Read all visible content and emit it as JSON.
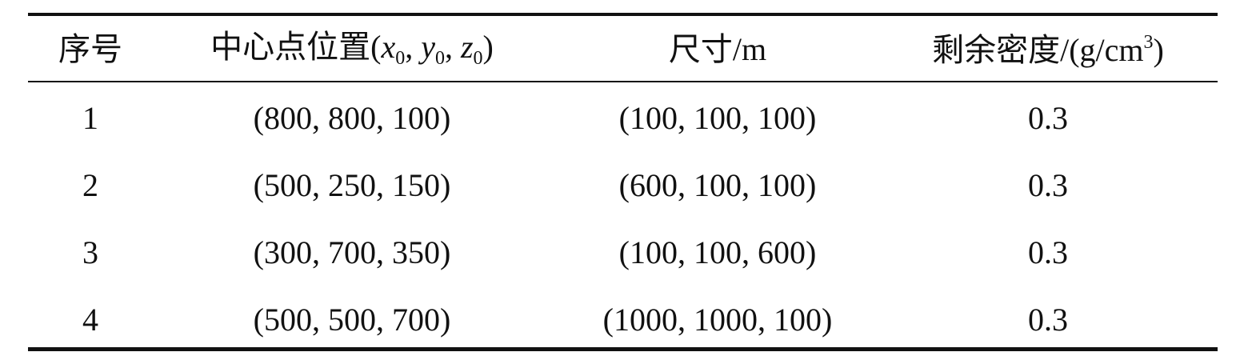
{
  "table": {
    "columns": [
      [
        {
          "text": "序号"
        }
      ],
      [
        {
          "text": "中心点位置("
        },
        {
          "text": "x",
          "italic": true
        },
        {
          "text": "0",
          "sub": true
        },
        {
          "text": ", "
        },
        {
          "text": "y",
          "italic": true
        },
        {
          "text": "0",
          "sub": true
        },
        {
          "text": ", "
        },
        {
          "text": "z",
          "italic": true
        },
        {
          "text": "0",
          "sub": true
        },
        {
          "text": ")"
        }
      ],
      [
        {
          "text": "尺寸/m"
        }
      ],
      [
        {
          "text": "剩余密度/(g/cm"
        },
        {
          "text": "3",
          "sup": true
        },
        {
          "text": ")"
        }
      ]
    ],
    "rows": [
      [
        "1",
        "(800, 800, 100)",
        "(100, 100, 100)",
        "0.3"
      ],
      [
        "2",
        "(500, 250, 150)",
        "(600, 100, 100)",
        "0.3"
      ],
      [
        "3",
        "(300, 700, 350)",
        "(100, 100, 600)",
        "0.3"
      ],
      [
        "4",
        "(500, 500, 700)",
        "(1000, 1000, 100)",
        "0.3"
      ]
    ]
  }
}
